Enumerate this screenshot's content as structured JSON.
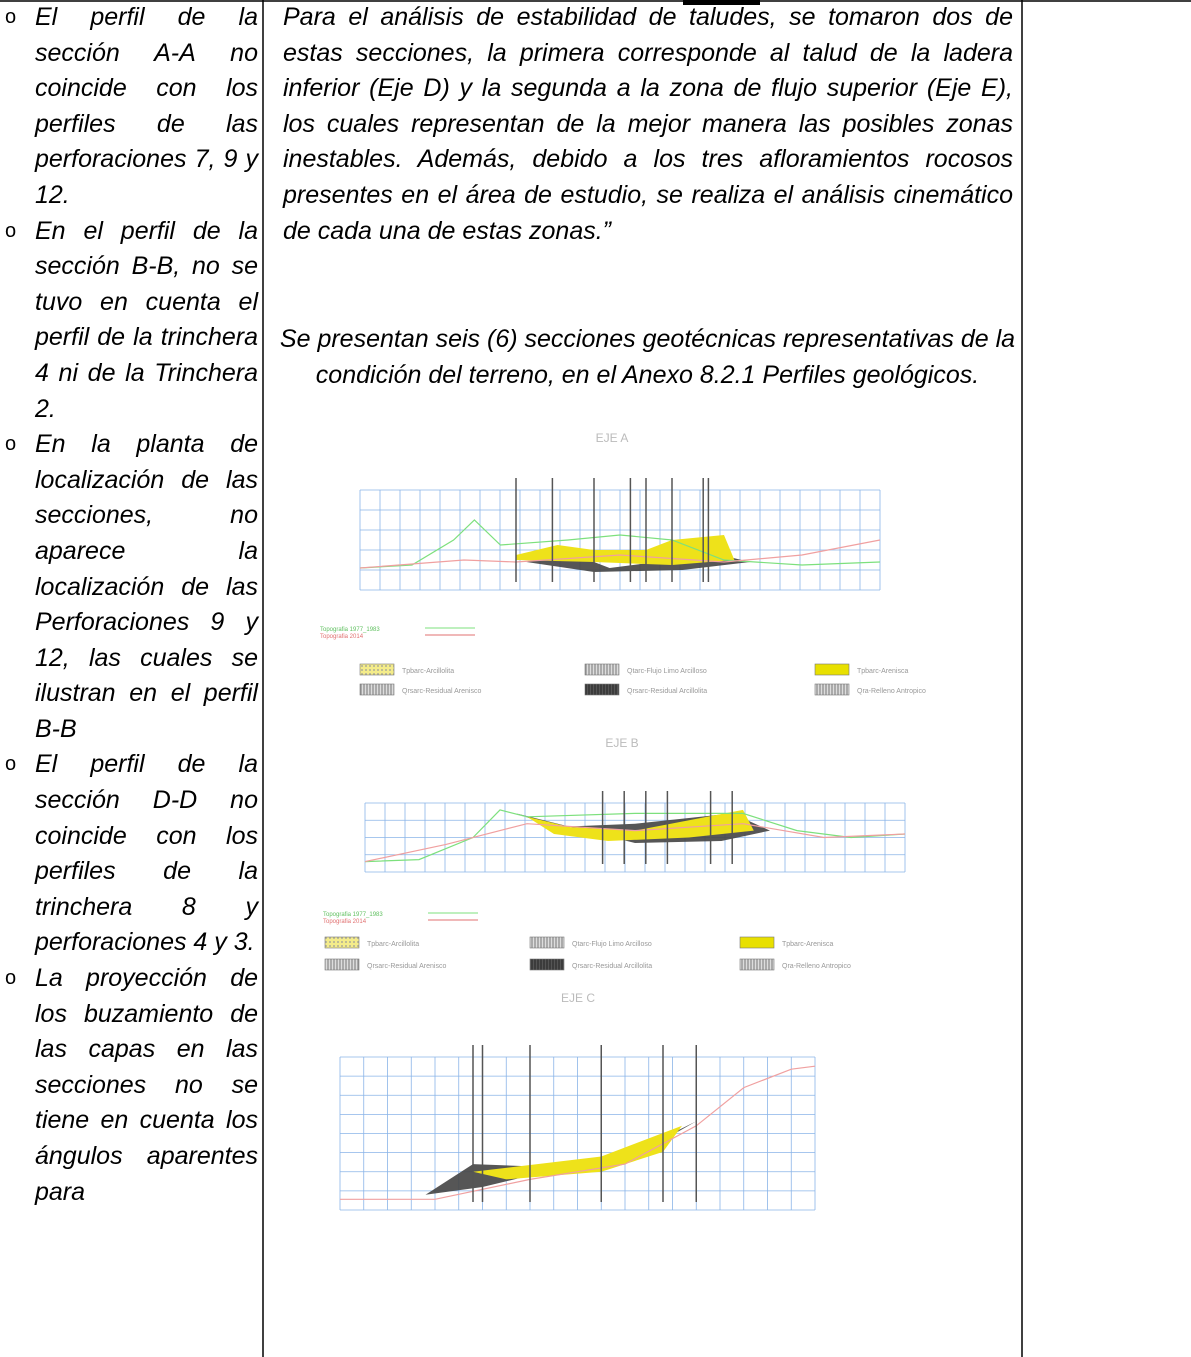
{
  "left": {
    "items": [
      "El perfil de la sección A-A no coincide con los perfiles de las perforaciones 7, 9 y 12.",
      "En el perfil de la sección B-B, no se tuvo en cuenta el perfil de la trinchera 4 ni de la Trinchera 2.",
      "En la planta de localización de las secciones, no aparece la localización de las Perforaciones 9 y 12, las cuales se ilustran en el perfil B-B",
      "El perfil de la sección D-D no coincide con los perfiles de la trinchera 8 y perforaciones 4 y 3.",
      "La proyección de los buzamiento de las capas en las secciones no se tiene en cuenta los ángulos aparentes para"
    ]
  },
  "middle": {
    "paragraph": "Para el análisis de estabilidad de taludes, se tomaron dos de estas secciones, la primera corresponde al talud de la ladera inferior (Eje D) y la segunda a la zona de flujo superior (Eje E), los cuales representan de la mejor manera las posibles zonas inestables. Además, debido a los tres afloramientos rocosos presentes en el área de estudio, se realiza el análisis cinemático de cada una de estas zonas.”",
    "caption": "Se presentan seis (6) secciones geotécnicas representativas de la condición del terreno, en el Anexo 8.2.1 Perfiles geológicos."
  },
  "figures": [
    {
      "title": "EJE A",
      "topo": [
        "Topografia 1977_1983",
        "Topografia 2014"
      ],
      "legend": [
        "Tpbarc-Arcillolita",
        "Qtarc-Flujo Limo Arcilloso",
        "Tpbarc-Arenisca",
        "Qrsarc-Residual Arenisco",
        "Qrsarc-Residual Arcillolita",
        "Qra-Relleno Antropico"
      ]
    },
    {
      "title": "EJE B",
      "topo": [
        "Topografia 1977_1983",
        "Topografia 2014"
      ],
      "legend": [
        "Tpbarc-Arcillolita",
        "Qtarc-Flujo Limo Arcilloso",
        "Tpbarc-Arenisca",
        "Qrsarc-Residual Arenisco",
        "Qrsarc-Residual Arcillolita",
        "Qra-Relleno Antropico"
      ]
    },
    {
      "title": "EJE C"
    }
  ]
}
